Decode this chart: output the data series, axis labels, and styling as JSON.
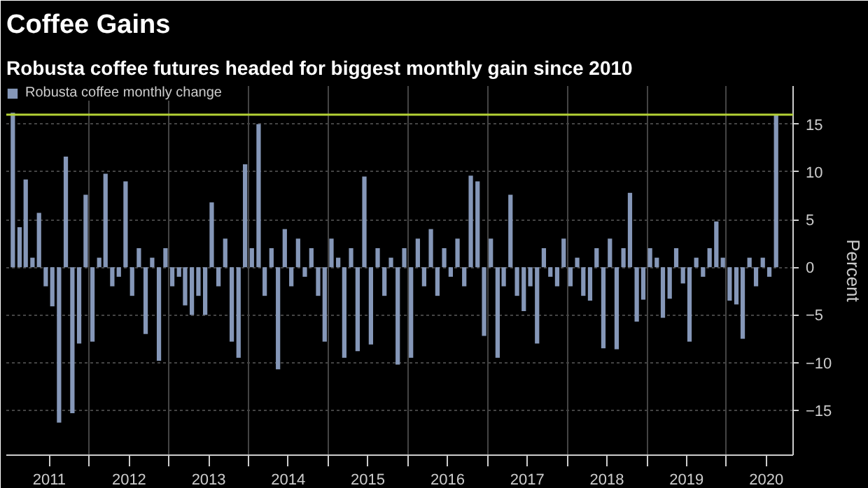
{
  "chart_data": {
    "type": "bar",
    "title": "Coffee Gains",
    "subtitle": "Robusta coffee futures headed for biggest monthly gain since 2010",
    "ylabel": "Percent",
    "x": [
      "2011-01",
      "2011-02",
      "2011-03",
      "2011-04",
      "2011-05",
      "2011-06",
      "2011-07",
      "2011-08",
      "2011-09",
      "2011-10",
      "2011-11",
      "2011-12",
      "2012-01",
      "2012-02",
      "2012-03",
      "2012-04",
      "2012-05",
      "2012-06",
      "2012-07",
      "2012-08",
      "2012-09",
      "2012-10",
      "2012-11",
      "2012-12",
      "2013-01",
      "2013-02",
      "2013-03",
      "2013-04",
      "2013-05",
      "2013-06",
      "2013-07",
      "2013-08",
      "2013-09",
      "2013-10",
      "2013-11",
      "2013-12",
      "2014-01",
      "2014-02",
      "2014-03",
      "2014-04",
      "2014-05",
      "2014-06",
      "2014-07",
      "2014-08",
      "2014-09",
      "2014-10",
      "2014-11",
      "2014-12",
      "2015-01",
      "2015-02",
      "2015-03",
      "2015-04",
      "2015-05",
      "2015-06",
      "2015-07",
      "2015-08",
      "2015-09",
      "2015-10",
      "2015-11",
      "2015-12",
      "2016-01",
      "2016-02",
      "2016-03",
      "2016-04",
      "2016-05",
      "2016-06",
      "2016-07",
      "2016-08",
      "2016-09",
      "2016-10",
      "2016-11",
      "2016-12",
      "2017-01",
      "2017-02",
      "2017-03",
      "2017-04",
      "2017-05",
      "2017-06",
      "2017-07",
      "2017-08",
      "2017-09",
      "2017-10",
      "2017-11",
      "2017-12",
      "2018-01",
      "2018-02",
      "2018-03",
      "2018-04",
      "2018-05",
      "2018-06",
      "2018-07",
      "2018-08",
      "2018-09",
      "2018-10",
      "2018-11",
      "2018-12",
      "2019-01",
      "2019-02",
      "2019-03",
      "2019-04",
      "2019-05",
      "2019-06",
      "2019-07",
      "2019-08",
      "2019-09",
      "2019-10",
      "2019-11",
      "2019-12",
      "2020-01",
      "2020-02",
      "2020-03",
      "2020-04",
      "2020-05",
      "2020-06",
      "2020-07",
      "2020-08"
    ],
    "series": [
      {
        "name": "Robusta coffee monthly change",
        "color": "#8597b8",
        "values": [
          16.2,
          4.2,
          9.2,
          1,
          5.7,
          -2,
          -4.1,
          -16.3,
          11.6,
          -15.3,
          -8,
          7.6,
          -7.8,
          1,
          9.8,
          -2,
          -1,
          9,
          -3,
          2,
          -7,
          1,
          -9.8,
          2,
          -2,
          -1,
          -4,
          -5,
          -3,
          -5,
          6.8,
          -2,
          3,
          -7.8,
          -9.5,
          10.8,
          2,
          15,
          -3,
          2,
          -10.7,
          4,
          -2,
          3,
          -1,
          2,
          -3,
          -7.8,
          3,
          1,
          -9.5,
          2,
          -8.8,
          9.5,
          -8.1,
          2,
          -3,
          1,
          -10.2,
          2,
          -9.5,
          3,
          -2,
          4,
          -3,
          2,
          -1,
          3,
          -2,
          9.6,
          9,
          -7.2,
          3,
          -9.5,
          -2,
          7.6,
          -3,
          -4.6,
          -2,
          -8,
          2,
          -1,
          -2,
          3,
          -2,
          1,
          -3,
          -3.5,
          2,
          -8.5,
          3,
          -8.6,
          2,
          7.8,
          -5.7,
          -3.4,
          2,
          1,
          -5.3,
          -3.3,
          2,
          -1.7,
          -7.8,
          1,
          -1,
          2,
          4.8,
          1,
          -3.5,
          -3.9,
          -7.5,
          1,
          -2,
          1,
          -1,
          16
        ]
      }
    ],
    "xlim": [
      "2010-12-16",
      "2020-11-01"
    ],
    "xticks": [
      {
        "value": "2011-07-01",
        "label": "2011"
      },
      {
        "value": "2012-01-01",
        "label": null
      },
      {
        "value": "2012-07-01",
        "label": "2012"
      },
      {
        "value": "2013-01-01",
        "label": null
      },
      {
        "value": "2013-07-01",
        "label": "2013"
      },
      {
        "value": "2014-01-01",
        "label": null
      },
      {
        "value": "2014-07-01",
        "label": "2014"
      },
      {
        "value": "2015-01-01",
        "label": null
      },
      {
        "value": "2015-07-01",
        "label": "2015"
      },
      {
        "value": "2016-01-01",
        "label": null
      },
      {
        "value": "2016-07-01",
        "label": "2016"
      },
      {
        "value": "2017-01-01",
        "label": null
      },
      {
        "value": "2017-07-01",
        "label": "2017"
      },
      {
        "value": "2018-01-01",
        "label": null
      },
      {
        "value": "2018-07-01",
        "label": "2018"
      },
      {
        "value": "2019-01-01",
        "label": null
      },
      {
        "value": "2019-07-01",
        "label": "2019"
      },
      {
        "value": "2020-01-01",
        "label": null
      },
      {
        "value": "2020-07-01",
        "label": "2020"
      }
    ],
    "ylim": [
      -19.7,
      19
    ],
    "yticks": [
      -15,
      -10,
      -5,
      0,
      5,
      10,
      15
    ],
    "grid": true,
    "legend": "top left",
    "ref_lines": [
      {
        "axis": "y",
        "value": 16,
        "color": "#b4d235"
      }
    ]
  }
}
